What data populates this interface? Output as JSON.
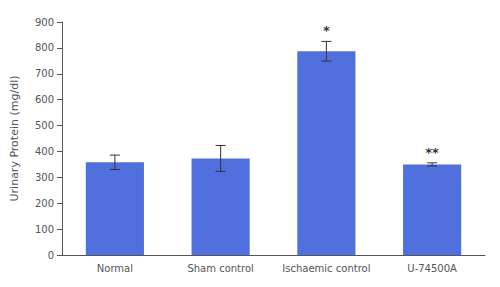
{
  "chart_data": {
    "type": "bar",
    "categories": [
      "Normal",
      "Sham control",
      "Ischaemic control",
      "U-74500A"
    ],
    "values": [
      358,
      373,
      787,
      350
    ],
    "errors": [
      28,
      50,
      38,
      6
    ],
    "ylabel": "Urinary Protein (mg/dl)",
    "ylim": [
      0,
      900
    ],
    "yticks": [
      0,
      100,
      200,
      300,
      400,
      500,
      600,
      700,
      800,
      900
    ],
    "annotations": [
      {
        "category": "Ischaemic control",
        "text": "*"
      },
      {
        "category": "U-74500A",
        "text": "**"
      }
    ],
    "grid": false
  }
}
